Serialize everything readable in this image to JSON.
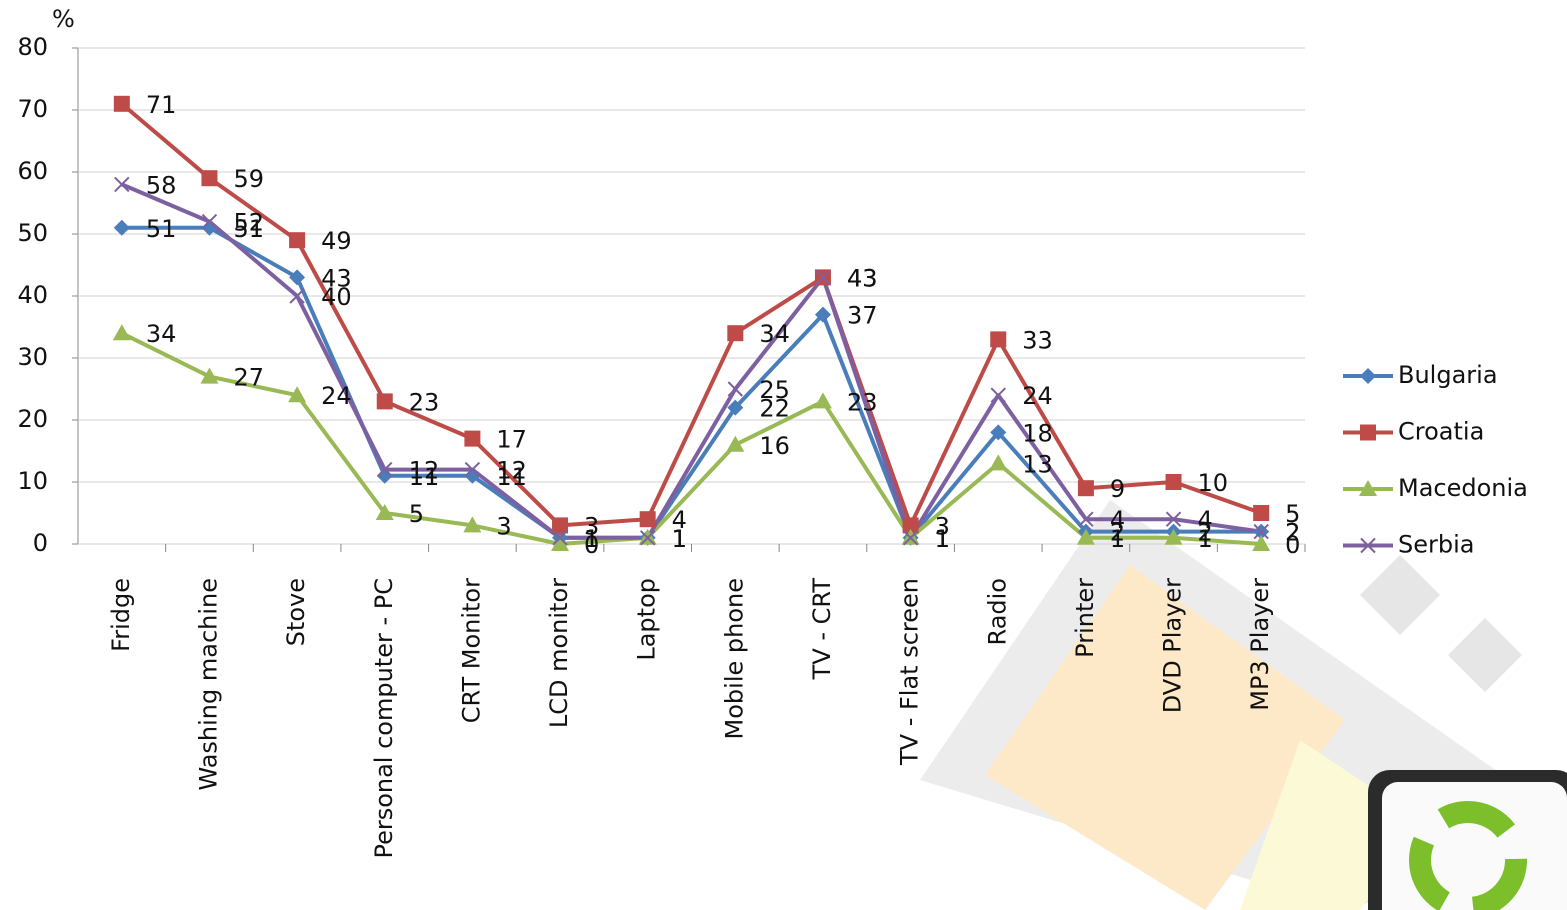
{
  "chart_data": {
    "type": "line",
    "y_label": "%",
    "categories": [
      "Fridge",
      "Washing machine",
      "Stove",
      "Personal computer - PC",
      "CRT Monitor",
      "LCD monitor",
      "Laptop",
      "Mobile phone",
      "TV - CRT",
      "TV - Flat screen",
      "Radio",
      "Printer",
      "DVD Player",
      "MP3 Player"
    ],
    "series": [
      {
        "name": "Bulgaria",
        "color": "#4a7ebb",
        "marker": "diamond",
        "values": [
          51,
          51,
          43,
          11,
          11,
          1,
          1,
          22,
          37,
          1,
          18,
          2,
          2,
          2
        ]
      },
      {
        "name": "Croatia",
        "color": "#be4b48",
        "marker": "square",
        "values": [
          71,
          59,
          49,
          23,
          17,
          3,
          4,
          34,
          43,
          3,
          33,
          9,
          10,
          5
        ]
      },
      {
        "name": "Macedonia",
        "color": "#98b954",
        "marker": "triangle",
        "values": [
          34,
          27,
          24,
          5,
          3,
          0,
          1,
          16,
          23,
          1,
          13,
          1,
          1,
          0
        ]
      },
      {
        "name": "Serbia",
        "color": "#7d60a0",
        "marker": "x",
        "values": [
          58,
          52,
          40,
          12,
          12,
          1,
          1,
          25,
          43,
          1,
          24,
          4,
          4,
          2
        ]
      }
    ],
    "ylim": [
      0,
      80
    ],
    "yticks": [
      0,
      10,
      20,
      30,
      40,
      50,
      60,
      70,
      80
    ],
    "grid": true,
    "legend": "right"
  }
}
